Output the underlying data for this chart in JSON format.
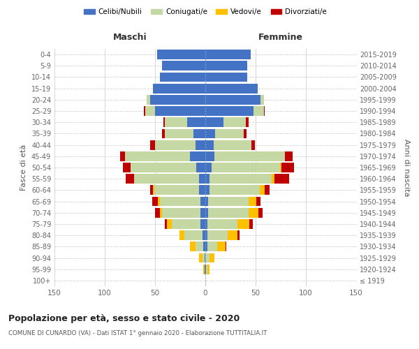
{
  "age_groups": [
    "100+",
    "95-99",
    "90-94",
    "85-89",
    "80-84",
    "75-79",
    "70-74",
    "65-69",
    "60-64",
    "55-59",
    "50-54",
    "45-49",
    "40-44",
    "35-39",
    "30-34",
    "25-29",
    "20-24",
    "15-19",
    "10-14",
    "5-9",
    "0-4"
  ],
  "birth_years": [
    "≤ 1919",
    "1920-1924",
    "1925-1929",
    "1930-1934",
    "1935-1939",
    "1940-1944",
    "1945-1949",
    "1950-1954",
    "1955-1959",
    "1960-1964",
    "1965-1969",
    "1970-1974",
    "1975-1979",
    "1980-1984",
    "1985-1989",
    "1990-1994",
    "1995-1999",
    "2000-2004",
    "2005-2009",
    "2010-2014",
    "2015-2019"
  ],
  "colors": {
    "celibe": "#4472c4",
    "coniugato": "#c5d8a4",
    "vedovo": "#ffc000",
    "divorziato": "#c00000"
  },
  "maschi": {
    "celibe": [
      0,
      1,
      1,
      2,
      3,
      5,
      5,
      5,
      6,
      6,
      9,
      15,
      10,
      12,
      18,
      50,
      55,
      52,
      45,
      43,
      48
    ],
    "coniugato": [
      0,
      0,
      2,
      8,
      18,
      28,
      38,
      40,
      45,
      65,
      65,
      65,
      40,
      28,
      22,
      10,
      3,
      0,
      0,
      0,
      0
    ],
    "vedovo": [
      0,
      1,
      3,
      5,
      5,
      5,
      2,
      2,
      1,
      0,
      0,
      0,
      0,
      0,
      0,
      0,
      0,
      0,
      0,
      0,
      0
    ],
    "divorziato": [
      0,
      0,
      0,
      0,
      0,
      2,
      5,
      6,
      3,
      8,
      8,
      5,
      5,
      3,
      2,
      1,
      0,
      0,
      0,
      0,
      0
    ]
  },
  "femmine": {
    "nubile": [
      0,
      1,
      0,
      2,
      2,
      2,
      3,
      3,
      4,
      4,
      6,
      9,
      8,
      10,
      18,
      48,
      55,
      52,
      42,
      42,
      45
    ],
    "coniugata": [
      0,
      1,
      4,
      10,
      20,
      30,
      40,
      40,
      50,
      62,
      68,
      70,
      38,
      28,
      22,
      10,
      3,
      0,
      0,
      0,
      0
    ],
    "vedova": [
      0,
      2,
      5,
      8,
      10,
      12,
      10,
      8,
      5,
      3,
      2,
      0,
      0,
      0,
      0,
      0,
      0,
      0,
      0,
      0,
      0
    ],
    "divorziata": [
      0,
      0,
      0,
      1,
      2,
      3,
      4,
      4,
      5,
      14,
      12,
      8,
      3,
      3,
      3,
      1,
      0,
      0,
      0,
      0,
      0
    ]
  },
  "title": "Popolazione per età, sesso e stato civile - 2020",
  "subtitle": "COMUNE DI CUNARDO (VA) - Dati ISTAT 1° gennaio 2020 - Elaborazione TUTTITALIA.IT",
  "xlabel_left": "Maschi",
  "xlabel_right": "Femmine",
  "ylabel_left": "Fasce di età",
  "ylabel_right": "Anni di nascita",
  "xlim": 150,
  "legend_labels": [
    "Celibi/Nubili",
    "Coniugati/e",
    "Vedovi/e",
    "Divorziati/e"
  ],
  "bg_color": "#ffffff",
  "grid_color": "#d0d0d0",
  "bar_height": 0.85
}
